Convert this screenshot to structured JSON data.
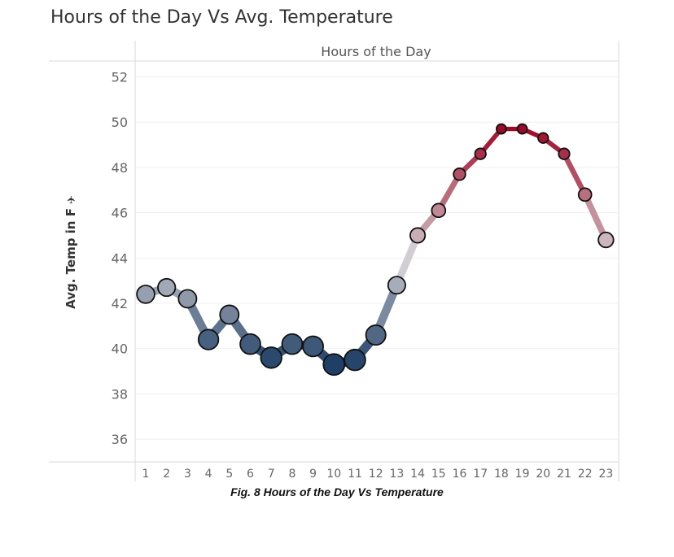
{
  "title": "Hours of the Day Vs Avg. Temperature",
  "caption": "Fig. 8 Hours of the Day Vs Temperature",
  "pin_icon": "pin-icon",
  "chart_data": {
    "type": "line",
    "title": "Hours of the Day Vs Avg. Temperature",
    "xlabel": "Hours of the Day",
    "ylabel": "Avg. Temp in F",
    "x": [
      1,
      2,
      3,
      4,
      5,
      6,
      7,
      8,
      9,
      10,
      11,
      12,
      13,
      14,
      15,
      16,
      17,
      18,
      19,
      20,
      21,
      22,
      23
    ],
    "values": [
      42.4,
      42.7,
      42.2,
      40.4,
      41.5,
      40.2,
      39.6,
      40.2,
      40.1,
      39.3,
      39.5,
      40.6,
      42.8,
      45.0,
      46.1,
      47.7,
      48.6,
      49.7,
      49.7,
      49.3,
      48.6,
      46.8,
      44.8
    ],
    "ylim": [
      35,
      52.7
    ],
    "yticks": [
      36,
      38,
      40,
      42,
      44,
      46,
      48,
      50,
      52
    ],
    "grid": true,
    "legend": "none",
    "color_scale": {
      "low": "#1f3f66",
      "mid": "#d4d1d4",
      "high": "#9b0a28",
      "domain": [
        39.3,
        44,
        49.7
      ]
    },
    "size_encoding": "larger markers for lower temperatures"
  }
}
